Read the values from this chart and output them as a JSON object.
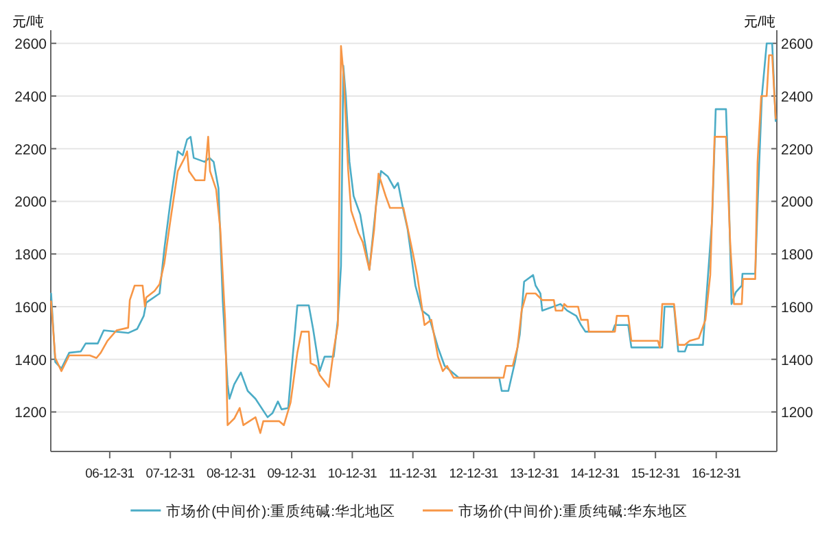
{
  "chart_data": {
    "type": "line",
    "ylabel": "元/吨",
    "y2label": "元/吨",
    "xlim": [
      "2006-01-10",
      "2017-12-31"
    ],
    "ylim": [
      1050,
      2650
    ],
    "y2lim": [
      1050,
      2650
    ],
    "xticks": [
      {
        "value": "2006-12-31",
        "label": "06-12-31"
      },
      {
        "value": "2007-12-31",
        "label": "07-12-31"
      },
      {
        "value": "2008-12-31",
        "label": "08-12-31"
      },
      {
        "value": "2009-12-31",
        "label": "09-12-31"
      },
      {
        "value": "2010-12-31",
        "label": "10-12-31"
      },
      {
        "value": "2011-12-31",
        "label": "11-12-31"
      },
      {
        "value": "2012-12-31",
        "label": "12-12-31"
      },
      {
        "value": "2013-12-31",
        "label": "13-12-31"
      },
      {
        "value": "2014-12-31",
        "label": "14-12-31"
      },
      {
        "value": "2015-12-31",
        "label": "15-12-31"
      },
      {
        "value": "2016-12-31",
        "label": "16-12-31"
      }
    ],
    "yticks": [
      1200,
      1400,
      1600,
      1800,
      2000,
      2200,
      2400,
      2600
    ],
    "y2ticks": [
      1200,
      1400,
      1600,
      1800,
      2000,
      2200,
      2400,
      2600
    ],
    "grid": "y",
    "legend": "bottom",
    "marker": "none",
    "line_style": "solid",
    "series": [
      {
        "name": "市场价(中间价):重质纯碱:华北地区",
        "color": "#4bacc6",
        "x": [
          "2006-01-12",
          "2006-02-06",
          "2006-03-15",
          "2006-05-01",
          "2006-07-10",
          "2006-08-08",
          "2006-10-20",
          "2006-11-25",
          "2007-04-21",
          "2007-06-14",
          "2007-07-24",
          "2007-08-08",
          "2007-10-27",
          "2007-11-25",
          "2008-01-01",
          "2008-02-14",
          "2008-03-15",
          "2008-04-10",
          "2008-05-01",
          "2008-05-20",
          "2008-07-24",
          "2008-08-23",
          "2008-09-17",
          "2008-10-16",
          "2008-11-11",
          "2008-12-10",
          "2008-12-21",
          "2009-01-19",
          "2009-02-28",
          "2009-04-10",
          "2009-05-27",
          "2009-08-08",
          "2009-09-06",
          "2009-10-09",
          "2009-10-31",
          "2009-12-10",
          "2010-01-01",
          "2010-02-03",
          "2010-04-13",
          "2010-05-09",
          "2010-06-18",
          "2010-07-17",
          "2010-09-10",
          "2010-10-05",
          "2010-10-24",
          "2010-11-07",
          "2010-11-22",
          "2010-12-14",
          "2011-01-08",
          "2011-02-17",
          "2011-04-13",
          "2011-05-23",
          "2011-06-22",
          "2011-08-01",
          "2011-09-10",
          "2011-10-02",
          "2011-11-04",
          "2011-11-29",
          "2012-01-15",
          "2012-02-24",
          "2012-04-05",
          "2012-05-30",
          "2012-07-09",
          "2012-10-02",
          "2013-06-03",
          "2013-06-18",
          "2013-07-28",
          "2013-09-06",
          "2013-10-05",
          "2013-10-31",
          "2013-12-24",
          "2014-01-08",
          "2014-02-06",
          "2014-02-17",
          "2014-06-07",
          "2014-07-17",
          "2014-09-10",
          "2014-10-09",
          "2014-11-04",
          "2015-04-17",
          "2015-05-01",
          "2015-07-20",
          "2015-08-08",
          "2016-02-10",
          "2016-02-24",
          "2016-04-21",
          "2016-05-16",
          "2016-06-25",
          "2016-07-10",
          "2016-10-12",
          "2016-10-27",
          "2016-12-06",
          "2016-12-28",
          "2017-02-28",
          "2017-03-15",
          "2017-04-02",
          "2017-04-28",
          "2017-06-03",
          "2017-06-07",
          "2017-08-23",
          "2017-09-06",
          "2017-10-02",
          "2017-10-31",
          "2017-12-03",
          "2017-12-24"
        ],
        "values": [
          1650,
          1390,
          1365,
          1425,
          1430,
          1460,
          1460,
          1510,
          1500,
          1515,
          1565,
          1615,
          1650,
          1820,
          2000,
          2190,
          2175,
          2235,
          2245,
          2165,
          2150,
          2165,
          2150,
          2050,
          1620,
          1305,
          1250,
          1305,
          1350,
          1280,
          1250,
          1180,
          1195,
          1240,
          1210,
          1215,
          1375,
          1605,
          1605,
          1515,
          1355,
          1410,
          1410,
          1550,
          1755,
          2515,
          2400,
          2150,
          2020,
          1950,
          1740,
          1985,
          2115,
          2095,
          2050,
          2070,
          1965,
          1895,
          1680,
          1585,
          1565,
          1445,
          1375,
          1330,
          1330,
          1280,
          1280,
          1390,
          1495,
          1695,
          1720,
          1680,
          1650,
          1585,
          1610,
          1585,
          1565,
          1530,
          1505,
          1505,
          1530,
          1530,
          1445,
          1445,
          1600,
          1600,
          1430,
          1430,
          1455,
          1455,
          1585,
          1930,
          2350,
          2350,
          2070,
          1610,
          1655,
          1680,
          1725,
          1725,
          1985,
          2400,
          2600,
          2600,
          2305
        ]
      },
      {
        "name": "市场价(中间价):重质纯碱:华东地区",
        "color": "#f79646",
        "x": [
          "2006-01-12",
          "2006-02-06",
          "2006-03-15",
          "2006-05-01",
          "2006-09-02",
          "2006-10-12",
          "2006-11-07",
          "2006-12-17",
          "2007-02-10",
          "2007-04-21",
          "2007-05-01",
          "2007-05-30",
          "2007-07-17",
          "2007-07-31",
          "2007-08-08",
          "2007-09-27",
          "2007-10-27",
          "2007-11-25",
          "2008-01-01",
          "2008-02-14",
          "2008-03-26",
          "2008-04-10",
          "2008-04-21",
          "2008-05-30",
          "2008-07-24",
          "2008-08-15",
          "2008-08-26",
          "2008-10-02",
          "2008-10-27",
          "2008-11-25",
          "2008-12-10",
          "2009-01-19",
          "2009-02-21",
          "2009-03-15",
          "2009-05-27",
          "2009-06-25",
          "2009-07-13",
          "2009-10-16",
          "2009-11-14",
          "2009-12-24",
          "2010-02-03",
          "2010-02-28",
          "2010-04-13",
          "2010-04-24",
          "2010-05-27",
          "2010-06-18",
          "2010-08-12",
          "2010-09-10",
          "2010-10-05",
          "2010-10-24",
          "2010-11-10",
          "2010-12-06",
          "2010-12-24",
          "2011-02-06",
          "2011-03-04",
          "2011-04-13",
          "2011-05-12",
          "2011-06-07",
          "2011-07-20",
          "2011-08-15",
          "2011-11-04",
          "2012-01-01",
          "2012-01-26",
          "2012-03-10",
          "2012-04-20",
          "2012-05-30",
          "2012-06-28",
          "2012-07-24",
          "2012-09-02",
          "2013-06-29",
          "2013-07-13",
          "2013-08-23",
          "2013-09-21",
          "2013-10-16",
          "2013-11-14",
          "2014-01-08",
          "2014-02-17",
          "2014-04-28",
          "2014-05-09",
          "2014-06-18",
          "2014-06-29",
          "2014-07-17",
          "2014-09-21",
          "2014-10-09",
          "2014-11-18",
          "2014-11-25",
          "2015-05-01",
          "2015-05-12",
          "2015-07-20",
          "2015-08-08",
          "2016-01-15",
          "2016-01-26",
          "2016-02-10",
          "2016-04-21",
          "2016-05-16",
          "2016-06-25",
          "2016-07-24",
          "2016-09-17",
          "2016-10-27",
          "2016-11-25",
          "2016-12-21",
          "2017-02-28",
          "2017-03-26",
          "2017-04-17",
          "2017-06-03",
          "2017-06-10",
          "2017-08-23",
          "2017-09-06",
          "2017-09-28",
          "2017-10-31",
          "2017-11-14",
          "2017-12-03",
          "2017-12-24"
        ],
        "values": [
          1620,
          1405,
          1355,
          1415,
          1415,
          1405,
          1425,
          1470,
          1510,
          1520,
          1625,
          1680,
          1680,
          1600,
          1635,
          1660,
          1685,
          1765,
          1930,
          2115,
          2165,
          2190,
          2115,
          2080,
          2080,
          2245,
          2115,
          2045,
          1895,
          1550,
          1150,
          1175,
          1215,
          1150,
          1180,
          1120,
          1165,
          1165,
          1150,
          1235,
          1425,
          1505,
          1505,
          1385,
          1375,
          1340,
          1295,
          1435,
          1530,
          2590,
          2470,
          2120,
          1965,
          1880,
          1845,
          1740,
          1895,
          2105,
          2020,
          1975,
          1975,
          1800,
          1720,
          1530,
          1550,
          1410,
          1355,
          1375,
          1330,
          1330,
          1375,
          1375,
          1445,
          1585,
          1650,
          1650,
          1625,
          1625,
          1585,
          1585,
          1610,
          1600,
          1600,
          1550,
          1550,
          1505,
          1505,
          1565,
          1565,
          1470,
          1470,
          1445,
          1610,
          1610,
          1455,
          1455,
          1470,
          1480,
          1550,
          1720,
          2245,
          2245,
          1830,
          1610,
          1610,
          1705,
          1705,
          2150,
          2400,
          2400,
          2555,
          2555,
          2315
        ]
      }
    ]
  }
}
